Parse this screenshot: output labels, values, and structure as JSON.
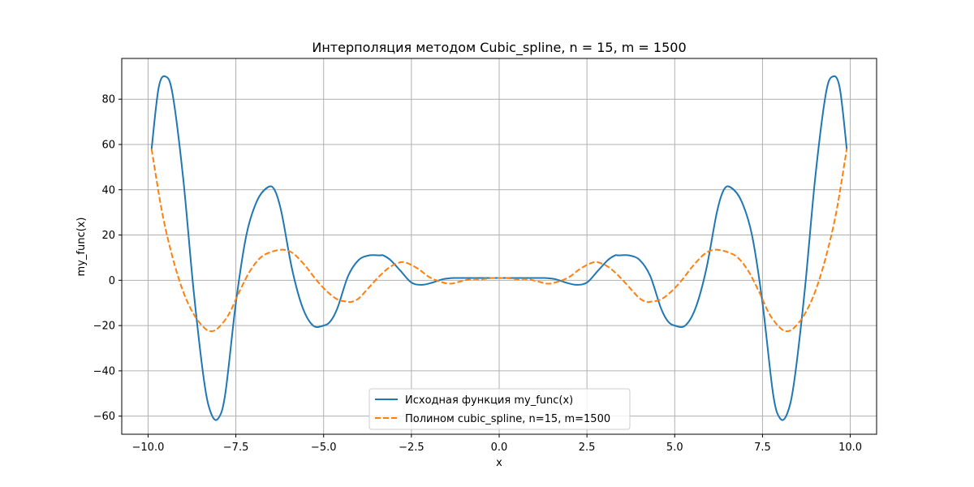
{
  "chart_data": {
    "type": "line",
    "title": "Интерполяция методом Cubic_spline, n = 15, m = 1500",
    "xlabel": "x",
    "ylabel": "my_func(x)",
    "xlim": [
      -10.75,
      10.75
    ],
    "ylim": [
      -68,
      98
    ],
    "grid": true,
    "legend_position": "lower center",
    "x_ticks": [
      -10.0,
      -7.5,
      -5.0,
      -2.5,
      0.0,
      2.5,
      5.0,
      7.5,
      10.0
    ],
    "x_tick_labels": [
      "−10.0",
      "−7.5",
      "−5.0",
      "−2.5",
      "0.0",
      "2.5",
      "5.0",
      "7.5",
      "10.0"
    ],
    "y_ticks": [
      -60,
      -40,
      -20,
      0,
      20,
      40,
      60,
      80
    ],
    "y_tick_labels": [
      "−60",
      "−40",
      "−20",
      "0",
      "20",
      "40",
      "60",
      "80"
    ],
    "series": [
      {
        "name": "Исходная функция my_func(x)",
        "color": "#1f77b4",
        "style": "solid",
        "x": [
          -9.9,
          -9.7,
          -9.5,
          -9.3,
          -9.0,
          -8.7,
          -8.4,
          -8.2,
          -8.0,
          -7.8,
          -7.5,
          -7.2,
          -6.9,
          -6.6,
          -6.4,
          -6.2,
          -5.9,
          -5.6,
          -5.3,
          -5.0,
          -4.8,
          -4.6,
          -4.3,
          -4.0,
          -3.7,
          -3.4,
          -3.3,
          -3.1,
          -2.8,
          -2.5,
          -2.2,
          -1.9,
          -1.6,
          -1.3,
          -1.0,
          -0.7,
          -0.4,
          0.0,
          0.4,
          0.7,
          1.0,
          1.3,
          1.6,
          1.9,
          2.2,
          2.5,
          2.8,
          3.1,
          3.3,
          3.4,
          3.7,
          4.0,
          4.3,
          4.6,
          4.8,
          5.0,
          5.3,
          5.6,
          5.9,
          6.2,
          6.4,
          6.6,
          6.9,
          7.2,
          7.5,
          7.8,
          8.0,
          8.2,
          8.4,
          8.7,
          9.0,
          9.3,
          9.5,
          9.7,
          9.9
        ],
        "y": [
          58,
          85,
          90,
          82,
          45,
          -5,
          -45,
          -59,
          -61,
          -50,
          -10,
          20,
          35,
          41,
          40,
          30,
          5,
          -12,
          -20,
          -20,
          -18,
          -12,
          2,
          9,
          11,
          11,
          11,
          9,
          4,
          -1,
          -2,
          -1,
          0.5,
          1,
          1,
          1,
          1,
          1,
          1,
          1,
          1,
          1,
          0.5,
          -1,
          -2,
          -1,
          4,
          9,
          11,
          11,
          11,
          9,
          2,
          -12,
          -18,
          -20,
          -20,
          -12,
          5,
          30,
          40,
          41,
          35,
          20,
          -10,
          -50,
          -61,
          -59,
          -45,
          -5,
          45,
          82,
          90,
          85,
          58
        ]
      },
      {
        "name": "Полином cubic_spline, n=15, m=1500",
        "color": "#ff7f0e",
        "style": "dashed",
        "x": [
          -9.9,
          -9.6,
          -9.3,
          -9.0,
          -8.7,
          -8.4,
          -8.2,
          -8.0,
          -7.7,
          -7.4,
          -7.1,
          -6.8,
          -6.5,
          -6.2,
          -6.0,
          -5.8,
          -5.5,
          -5.2,
          -4.9,
          -4.6,
          -4.3,
          -4.2,
          -4.0,
          -3.7,
          -3.4,
          -3.1,
          -2.8,
          -2.6,
          -2.3,
          -2.0,
          -1.7,
          -1.4,
          -1.1,
          -0.8,
          -0.5,
          -0.2,
          0.0,
          0.2,
          0.5,
          0.8,
          1.1,
          1.4,
          1.7,
          2.0,
          2.3,
          2.6,
          2.8,
          3.1,
          3.4,
          3.7,
          4.0,
          4.2,
          4.3,
          4.6,
          4.9,
          5.2,
          5.5,
          5.8,
          6.0,
          6.2,
          6.5,
          6.8,
          7.1,
          7.4,
          7.7,
          8.0,
          8.2,
          8.4,
          8.7,
          9.0,
          9.3,
          9.6,
          9.9
        ],
        "y": [
          58,
          30,
          10,
          -5,
          -15,
          -21,
          -22.5,
          -21,
          -15,
          -5,
          4,
          10,
          12.5,
          13.5,
          13,
          11,
          6,
          0,
          -5,
          -8.5,
          -9.5,
          -9.5,
          -8,
          -3,
          2,
          6,
          8,
          7.5,
          5,
          1.5,
          -0.5,
          -1.5,
          -0.5,
          0.5,
          0.5,
          1,
          1,
          1,
          0.5,
          0.5,
          -0.5,
          -1.5,
          -0.5,
          1.5,
          5,
          7.5,
          8,
          6,
          2,
          -3,
          -8,
          -9.5,
          -9.5,
          -8.5,
          -5,
          0,
          6,
          11,
          13,
          13.5,
          12.5,
          10,
          4,
          -5,
          -15,
          -21,
          -22.5,
          -21,
          -15,
          -5,
          10,
          30,
          58
        ]
      }
    ]
  }
}
